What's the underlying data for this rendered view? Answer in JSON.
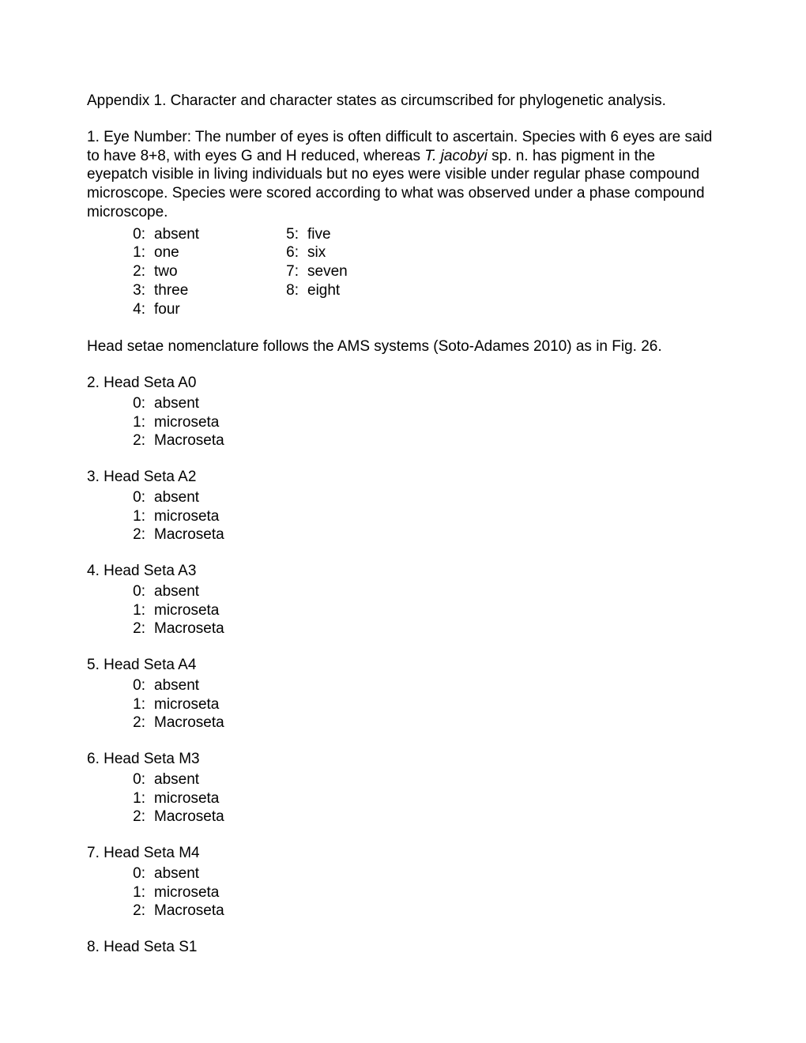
{
  "appendixTitle": "Appendix 1. Character and character states as circumscribed for phylogenetic analysis.",
  "char1": {
    "textPre": "1. Eye Number: The number of eyes is often difficult to ascertain. Species with 6 eyes are said to have 8+8, with eyes G and H reduced, whereas ",
    "italic": "T. jacobyi",
    "textPost": " sp. n. has pigment in the eyepatch visible in living individuals but no eyes were visible under regular phase compound microscope. Species were scored according to what was observed under a phase compound microscope.",
    "colA": [
      {
        "n": "0:",
        "l": "absent"
      },
      {
        "n": "1:",
        "l": "one"
      },
      {
        "n": "2:",
        "l": "two"
      },
      {
        "n": "3:",
        "l": "three"
      },
      {
        "n": "4:",
        "l": "four"
      }
    ],
    "colB": [
      {
        "n": "5:",
        "l": "five"
      },
      {
        "n": "6:",
        "l": "six"
      },
      {
        "n": "7:",
        "l": "seven"
      },
      {
        "n": "8:",
        "l": "eight"
      }
    ]
  },
  "note": "Head setae nomenclature follows the AMS systems (Soto-Adames 2010) as in Fig. 26.",
  "commonStates": [
    {
      "n": "0:",
      "l": "absent"
    },
    {
      "n": "1:",
      "l": "microseta"
    },
    {
      "n": "2:",
      "l": "Macroseta"
    }
  ],
  "char2": {
    "title": "2. Head Seta A0"
  },
  "char3": {
    "title": "3. Head Seta A2"
  },
  "char4": {
    "title": "4. Head Seta A3"
  },
  "char5": {
    "title": "5. Head Seta A4"
  },
  "char6": {
    "title": "6. Head Seta M3"
  },
  "char7": {
    "title": "7. Head Seta M4"
  },
  "char8": {
    "title": "8. Head Seta S1"
  }
}
